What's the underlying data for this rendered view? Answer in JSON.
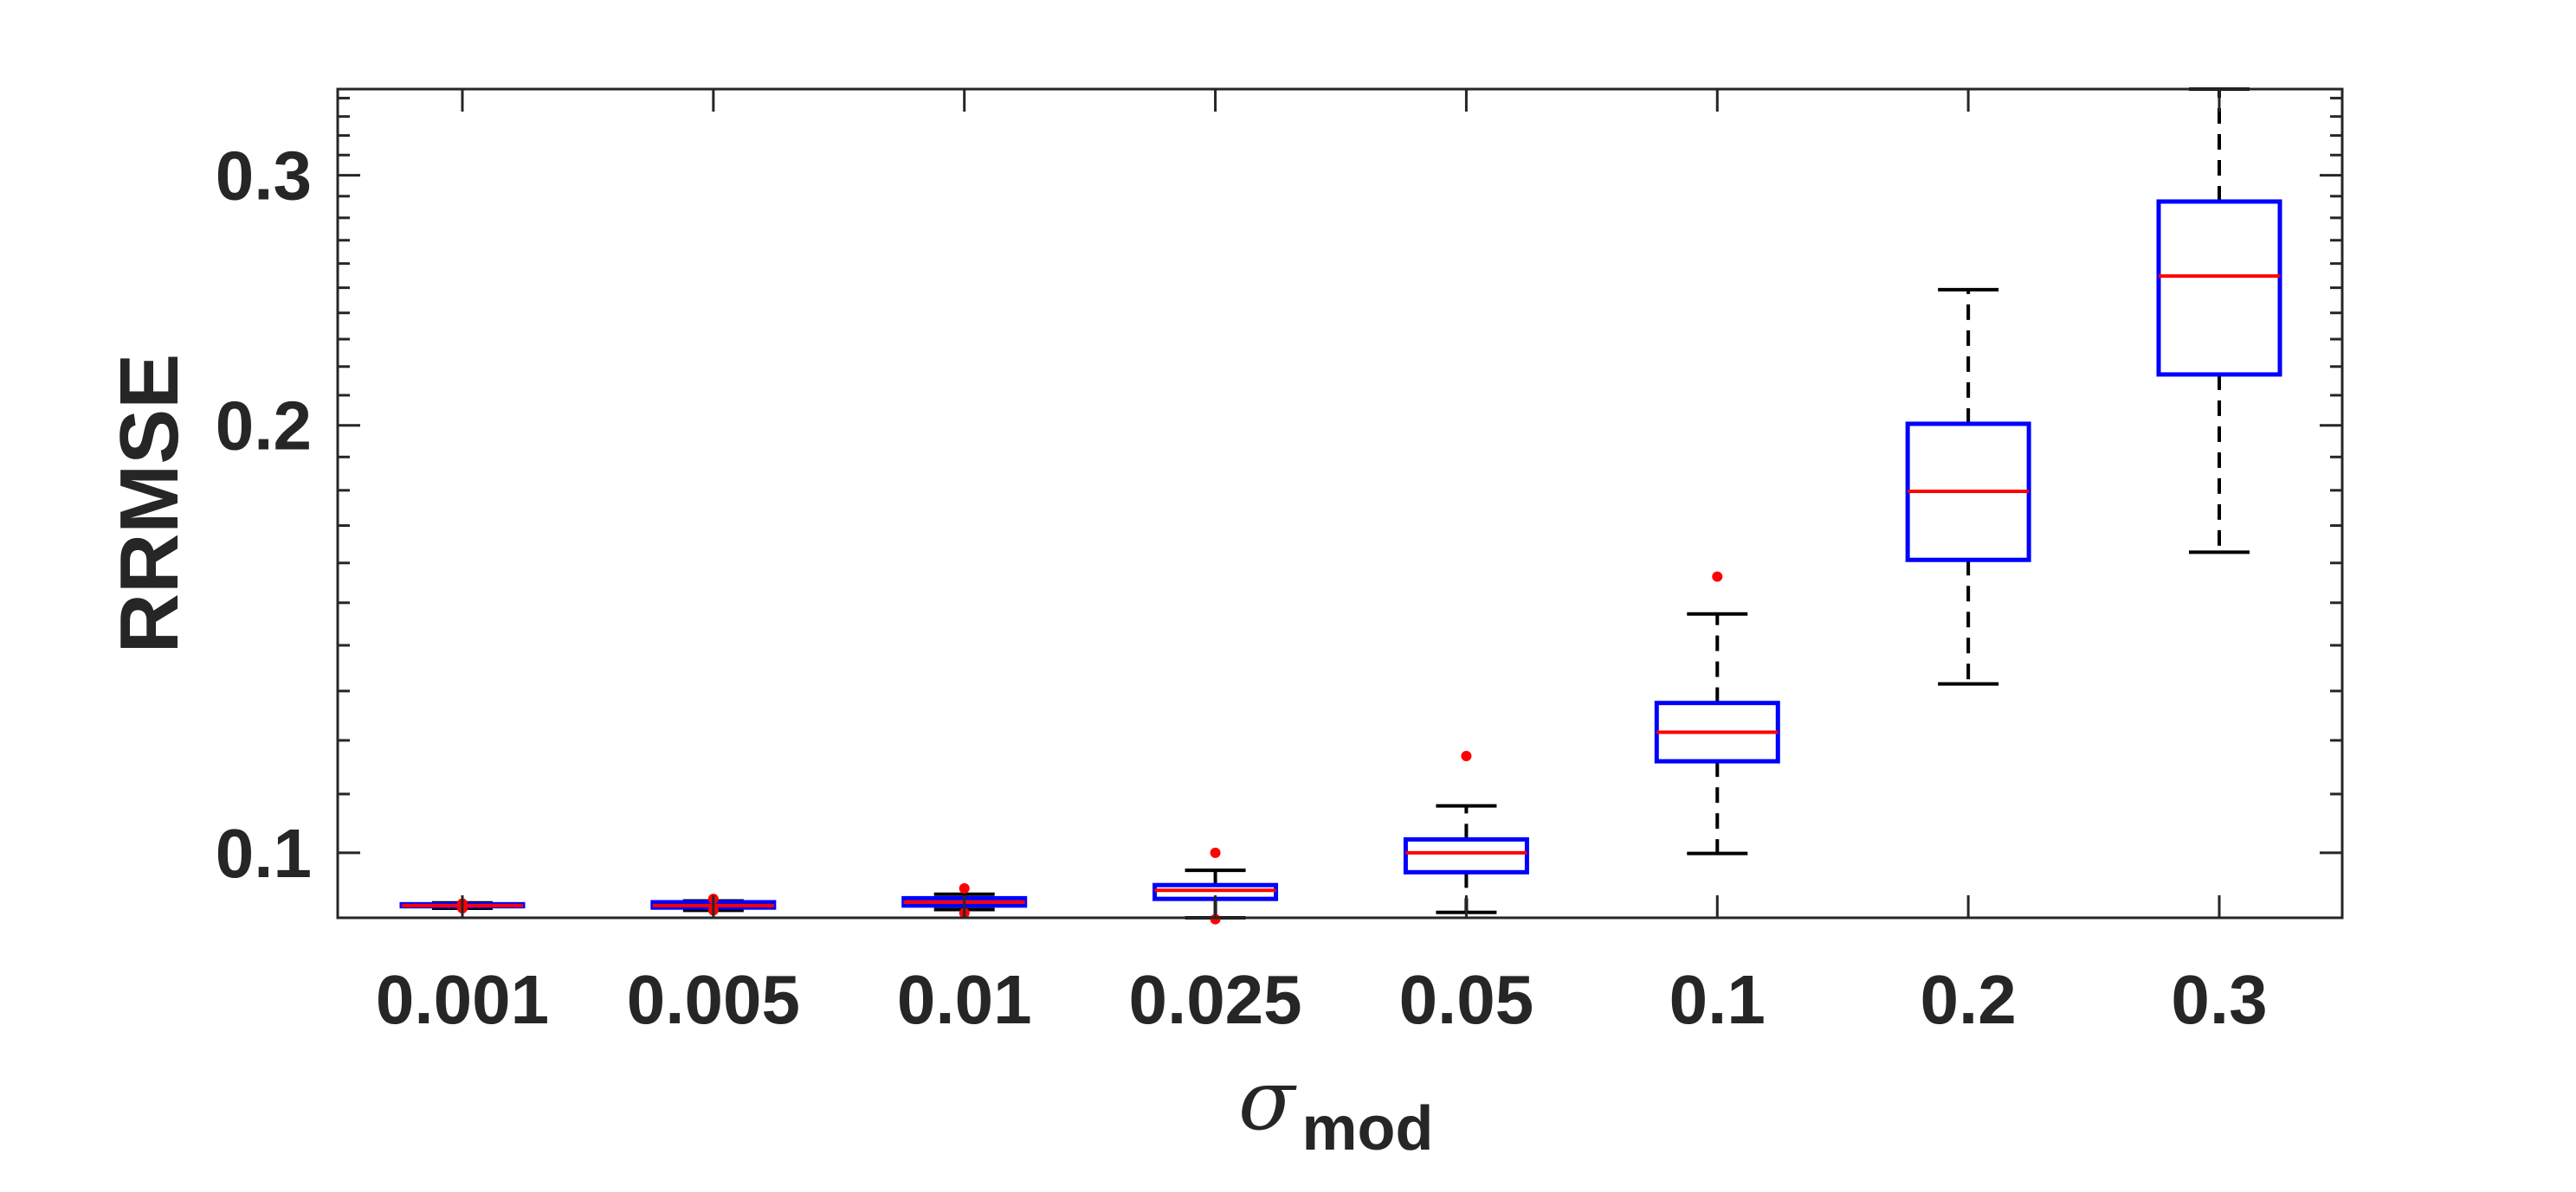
{
  "chart_data": {
    "type": "box",
    "title": "",
    "xlabel": "σ",
    "xlabel_subscript": "mod",
    "ylabel": "RRMSE",
    "yscale": "log",
    "ylim": [
      0.09,
      0.345
    ],
    "yticks": [
      0.1,
      0.2,
      0.3
    ],
    "ytick_labels": [
      "0.1",
      "0.2",
      "0.3"
    ],
    "categories": [
      "0.001",
      "0.005",
      "0.01",
      "0.025",
      "0.05",
      "0.1",
      "0.2",
      "0.3"
    ],
    "boxes": [
      {
        "category": "0.001",
        "whisker_low": 0.0914,
        "q1": 0.0917,
        "median": 0.0918,
        "q3": 0.092,
        "whisker_high": 0.0922,
        "outliers": [
          0.0914,
          0.0921
        ]
      },
      {
        "category": "0.005",
        "whisker_low": 0.0911,
        "q1": 0.0915,
        "median": 0.0918,
        "q3": 0.0923,
        "whisker_high": 0.0925,
        "outliers": [
          0.0911,
          0.0928
        ]
      },
      {
        "category": "0.01",
        "whisker_low": 0.0912,
        "q1": 0.0918,
        "median": 0.0923,
        "q3": 0.0929,
        "whisker_high": 0.0935,
        "outliers": [
          0.0907,
          0.0944
        ]
      },
      {
        "category": "0.025",
        "whisker_low": 0.09,
        "q1": 0.0928,
        "median": 0.0941,
        "q3": 0.0949,
        "whisker_high": 0.0972,
        "outliers": [
          0.0898,
          0.1
        ]
      },
      {
        "category": "0.05",
        "whisker_low": 0.0908,
        "q1": 0.0969,
        "median": 0.1,
        "q3": 0.1022,
        "whisker_high": 0.1079,
        "outliers": [
          0.117
        ]
      },
      {
        "category": "0.1",
        "whisker_low": 0.0999,
        "q1": 0.116,
        "median": 0.1216,
        "q3": 0.1275,
        "whisker_high": 0.1473,
        "outliers": [
          0.1565
        ]
      },
      {
        "category": "0.2",
        "whisker_low": 0.1315,
        "q1": 0.1608,
        "median": 0.1797,
        "q3": 0.2005,
        "whisker_high": 0.2492,
        "outliers": []
      },
      {
        "category": "0.3",
        "whisker_low": 0.1628,
        "q1": 0.2172,
        "median": 0.2548,
        "q3": 0.2875,
        "whisker_high": 0.345,
        "outliers": []
      }
    ],
    "colors": {
      "box": "#0000ff",
      "median": "#ff0000",
      "whisker": "#000000",
      "outlier": "#ff0000",
      "axis": "#262626"
    },
    "grid": false,
    "legend": "none"
  }
}
